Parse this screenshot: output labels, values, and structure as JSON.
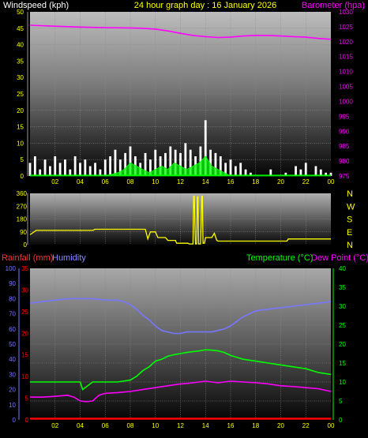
{
  "header": {
    "left_label": "Windspeed (kph)",
    "title": "24 hour graph day : 16 January 2026",
    "right_label": "Barometer (hpa)"
  },
  "colors": {
    "wind": "#ffffff",
    "gust_fill": "#00ff00",
    "barometer": "#ff00ff",
    "direction": "#ffff00",
    "humidity": "#7777ff",
    "temperature": "#00ff00",
    "dewpoint": "#ff00ff",
    "rainfall": "#ff0000",
    "left_axis_text": "#ffff00",
    "right_axis_text": "#ff00ff"
  },
  "chart_data": [
    {
      "type": "line",
      "name": "wind-barometer",
      "xlabel": "",
      "x_ticks": [
        "02",
        "04",
        "06",
        "08",
        "10",
        "12",
        "14",
        "16",
        "18",
        "20",
        "22",
        "00"
      ],
      "xlim": [
        0,
        24
      ],
      "y_left": {
        "label": "Windspeed (kph)",
        "ticks": [
          0,
          5,
          10,
          15,
          20,
          25,
          30,
          35,
          40,
          45,
          50
        ],
        "ylim": [
          0,
          50
        ]
      },
      "y_right": {
        "label": "Barometer (hpa)",
        "ticks": [
          975,
          980,
          985,
          990,
          995,
          1000,
          1005,
          1010,
          1015,
          1020,
          1025,
          1030
        ],
        "ylim": [
          975,
          1030
        ]
      },
      "series": [
        {
          "name": "Barometer (hpa)",
          "axis": "right",
          "x": [
            0,
            2,
            4,
            6,
            8,
            9,
            10,
            11,
            12,
            13,
            14,
            15,
            16,
            17,
            18,
            19,
            20,
            21,
            22,
            23,
            24
          ],
          "y": [
            1025.5,
            1025.2,
            1024.9,
            1024.7,
            1024.6,
            1024.5,
            1024.2,
            1023.6,
            1022.8,
            1022.1,
            1021.7,
            1021.4,
            1021.5,
            1021.9,
            1022.1,
            1022.1,
            1021.9,
            1021.7,
            1021.5,
            1021.1,
            1020.8
          ]
        },
        {
          "name": "Windspeed (kph)",
          "axis": "left",
          "x": [
            0,
            0.4,
            0.8,
            1.2,
            1.6,
            2,
            2.4,
            2.8,
            3.2,
            3.6,
            4,
            4.4,
            4.8,
            5.2,
            5.6,
            6,
            6.4,
            6.8,
            7.2,
            7.6,
            8,
            8.4,
            8.8,
            9.2,
            9.6,
            10,
            10.4,
            10.8,
            11.2,
            11.6,
            12,
            12.4,
            12.8,
            13.2,
            13.6,
            14,
            14.4,
            14.8,
            15.2,
            15.6,
            16,
            16.4,
            16.8,
            17.2,
            17.6,
            18,
            18.4,
            18.8,
            19.2,
            19.6,
            20,
            20.4,
            20.8,
            21.2,
            21.6,
            22,
            22.4,
            22.8,
            23.2,
            23.6,
            24
          ],
          "y": [
            4,
            6,
            2,
            5,
            3,
            6,
            4,
            5,
            2,
            6,
            4,
            5,
            3,
            4,
            2,
            5,
            6,
            8,
            5,
            7,
            9,
            6,
            4,
            7,
            5,
            8,
            6,
            7,
            9,
            8,
            7,
            10,
            8,
            6,
            9,
            17,
            8,
            7,
            6,
            4,
            5,
            3,
            4,
            2,
            1,
            0,
            0,
            0,
            2,
            0,
            0,
            1,
            0,
            3,
            2,
            4,
            0,
            3,
            2,
            1,
            1
          ]
        },
        {
          "name": "Wind gust",
          "axis": "left",
          "x": [
            0,
            1,
            2,
            3,
            4,
            5,
            6,
            7,
            7.5,
            8,
            8.5,
            9,
            9.5,
            10,
            10.5,
            11,
            11.5,
            12,
            12.5,
            13,
            13.5,
            14,
            14.5,
            15,
            15.5,
            16,
            17,
            18,
            20,
            22,
            24
          ],
          "y": [
            0,
            0,
            0,
            0,
            0,
            0,
            0,
            1,
            2,
            4,
            3,
            2,
            1,
            2,
            3,
            2,
            4,
            3,
            2,
            3,
            4,
            6,
            3,
            2,
            1,
            0,
            0,
            0,
            0,
            0,
            0
          ]
        }
      ]
    },
    {
      "type": "line",
      "name": "wind-direction",
      "xlabel": "",
      "x_ticks": [
        "02",
        "04",
        "06",
        "08",
        "10",
        "12",
        "14",
        "16",
        "18",
        "20",
        "22",
        "00"
      ],
      "xlim": [
        0,
        24
      ],
      "y_left": {
        "label": "",
        "ticks": [
          0,
          90,
          180,
          270,
          360
        ],
        "ylim": [
          0,
          360
        ]
      },
      "y_right": {
        "label": "",
        "ticks": [
          "N",
          "W",
          "S",
          "E",
          "N"
        ]
      },
      "series": [
        {
          "name": "Direction",
          "axis": "left",
          "x": [
            0,
            0.5,
            5,
            5.2,
            9.2,
            9.4,
            9.6,
            10,
            10.2,
            10.8,
            11,
            11.6,
            11.7,
            12.6,
            12.7,
            13.0,
            13.05,
            13.1,
            13.2,
            13.3,
            13.35,
            13.4,
            13.45,
            13.6,
            13.7,
            13.75,
            13.8,
            13.9,
            14.0,
            14.5,
            14.7,
            14.9,
            15.0,
            15.2,
            20.5,
            20.6,
            24
          ],
          "y": [
            70,
            100,
            100,
            108,
            108,
            40,
            90,
            90,
            50,
            50,
            30,
            30,
            10,
            10,
            5,
            5,
            340,
            340,
            5,
            5,
            330,
            340,
            5,
            5,
            340,
            340,
            10,
            10,
            50,
            50,
            80,
            30,
            25,
            25,
            25,
            40,
            40
          ]
        }
      ]
    },
    {
      "type": "line",
      "name": "temperature-humidity",
      "xlabel": "",
      "x_ticks": [
        "02",
        "04",
        "06",
        "08",
        "10",
        "12",
        "14",
        "16",
        "18",
        "20",
        "22",
        "00"
      ],
      "xlim": [
        0,
        24
      ],
      "y_humidity": {
        "label": "Humidity",
        "ticks": [
          0,
          10,
          20,
          30,
          40,
          50,
          60,
          70,
          80,
          90,
          100
        ],
        "ylim": [
          0,
          100
        ]
      },
      "y_rain": {
        "label": "Rainfall (mm)",
        "ticks": [
          0,
          5,
          10,
          15,
          20,
          25,
          30,
          35
        ],
        "ylim": [
          0,
          35
        ]
      },
      "y_right": {
        "label": "Temperature (°C)",
        "label2": "Dew Point (°C)",
        "ticks": [
          0,
          5,
          10,
          15,
          20,
          25,
          30,
          35,
          40
        ],
        "ylim": [
          0,
          40
        ]
      },
      "series": [
        {
          "name": "Humidity",
          "axis": "humidity",
          "x": [
            0,
            1,
            2,
            3,
            4,
            5,
            6,
            7,
            7.5,
            8,
            8.5,
            9,
            9.5,
            10,
            10.5,
            11,
            11.5,
            12,
            12.5,
            13,
            13.5,
            14,
            14.5,
            15,
            15.5,
            16,
            16.5,
            17,
            17.5,
            18,
            19,
            20,
            21,
            22,
            23,
            24
          ],
          "y": [
            77,
            78,
            79,
            80,
            80,
            80,
            79,
            79,
            78,
            76,
            73,
            69,
            66,
            62,
            59,
            58,
            57,
            57,
            58,
            58,
            58,
            58,
            58,
            59,
            60,
            62,
            65,
            68,
            70,
            72,
            73,
            74,
            75,
            76,
            77,
            78
          ]
        },
        {
          "name": "Temperature (°C)",
          "axis": "right",
          "x": [
            0,
            1,
            2,
            3,
            4,
            4.2,
            5,
            6,
            7,
            8,
            8.5,
            9,
            9.5,
            10,
            10.5,
            11,
            11.5,
            12,
            12.5,
            13,
            13.5,
            14,
            14.5,
            15,
            15.5,
            16,
            17,
            18,
            19,
            20,
            21,
            22,
            23,
            24
          ],
          "y": [
            10,
            10,
            10,
            10,
            10,
            8,
            10,
            10,
            10,
            10.5,
            11.5,
            13,
            14,
            15.5,
            16,
            16.8,
            17.2,
            17.5,
            17.8,
            18,
            18.2,
            18.5,
            18.4,
            18.2,
            17.8,
            17,
            16,
            15.5,
            15,
            14.5,
            14,
            13.5,
            12.5,
            12
          ]
        },
        {
          "name": "Dew Point (°C)",
          "axis": "right",
          "x": [
            0,
            1,
            2,
            3,
            3.5,
            4,
            4.5,
            5,
            5.5,
            6,
            7,
            8,
            9,
            10,
            11,
            12,
            12.5,
            13,
            13.5,
            14,
            14.5,
            15,
            15.5,
            16,
            17,
            18,
            19,
            20,
            21,
            22,
            23,
            24
          ],
          "y": [
            6,
            6,
            6.2,
            6.5,
            6,
            5,
            4.8,
            5,
            6.5,
            7,
            7.2,
            7.5,
            8,
            8.5,
            9,
            9.5,
            9.6,
            9.8,
            10,
            10.2,
            10,
            9.8,
            10,
            10.2,
            10,
            9.8,
            9.5,
            9,
            8.8,
            8.5,
            8.2,
            7.5
          ]
        },
        {
          "name": "Rainfall (mm)",
          "axis": "rain",
          "x": [
            0,
            24
          ],
          "y": [
            0,
            0
          ]
        }
      ]
    }
  ],
  "chart3": {
    "rain_label": "Rainfall (mm)",
    "humidity_label": "Humidity",
    "temp_label": "Temperature (°C)",
    "dew_label": "Dew Point (°C)"
  }
}
